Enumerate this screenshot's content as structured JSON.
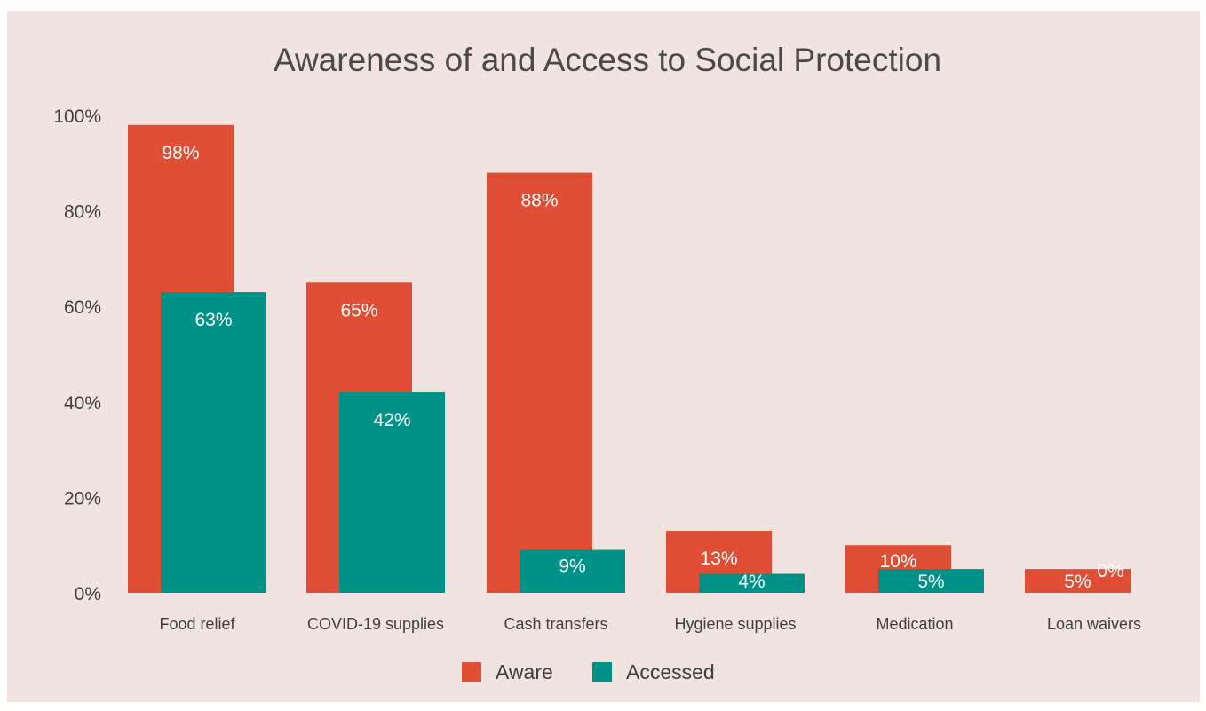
{
  "chart_data": {
    "type": "bar",
    "title": "Awareness of and Access to Social Protection",
    "categories": [
      "Food relief",
      "COVID-19 supplies",
      "Cash transfers",
      "Hygiene supplies",
      "Medication",
      "Loan waivers"
    ],
    "series": [
      {
        "name": "Aware",
        "color": "#e04e35",
        "values": [
          98,
          65,
          88,
          13,
          10,
          5
        ],
        "labels": [
          "98%",
          "65%",
          "88%",
          "13%",
          "10%",
          "5%"
        ]
      },
      {
        "name": "Accessed",
        "color": "#009189",
        "values": [
          63,
          42,
          9,
          4,
          5,
          0
        ],
        "labels": [
          "63%",
          "42%",
          "9%",
          "4%",
          "5%",
          "0%"
        ]
      }
    ],
    "ylim": [
      0,
      100
    ],
    "yticks": [
      0,
      20,
      40,
      60,
      80,
      100
    ],
    "ytick_labels": [
      "0%",
      "20%",
      "40%",
      "60%",
      "80%",
      "100%"
    ],
    "grid": false,
    "legend_position": "bottom-center"
  }
}
